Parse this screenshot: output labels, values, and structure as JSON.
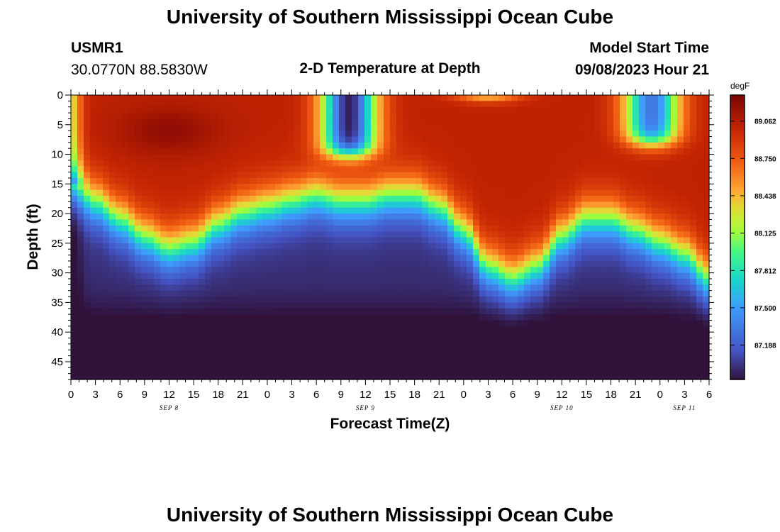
{
  "header": {
    "title": "University of Southern Mississippi Ocean Cube",
    "station_id": "USMR1",
    "station_coords": "30.0770N  88.5830W",
    "plot_title": "2-D Temperature at Depth",
    "model_label": "Model Start Time",
    "model_time": "09/08/2023 Hour 21"
  },
  "footer": {
    "title": "University of Southern Mississippi Ocean Cube"
  },
  "chart_data": {
    "type": "heatmap",
    "title": "2-D Temperature at Depth",
    "xlabel": "Forecast Time(Z)",
    "ylabel": "Depth (ft)",
    "x_range_hours": [
      0,
      78
    ],
    "x_tick_step_hours": 3,
    "x_tick_labels": [
      "0",
      "3",
      "6",
      "9",
      "12",
      "15",
      "18",
      "21",
      "0",
      "3",
      "6",
      "9",
      "12",
      "15",
      "18",
      "21",
      "0",
      "3",
      "6",
      "9",
      "12",
      "15",
      "18",
      "21",
      "0",
      "3",
      "6"
    ],
    "date_labels": [
      {
        "label": "SEP 8",
        "hour": 12
      },
      {
        "label": "SEP 9",
        "hour": 36
      },
      {
        "label": "SEP 10",
        "hour": 60
      },
      {
        "label": "SEP 11",
        "hour": 75
      }
    ],
    "y_range_ft": [
      0,
      48
    ],
    "y_tick_labels": [
      "0",
      "5",
      "10",
      "15",
      "20",
      "25",
      "30",
      "35",
      "40",
      "45"
    ],
    "y_tick_values": [
      0,
      5,
      10,
      15,
      20,
      25,
      30,
      35,
      40,
      45
    ],
    "colorbar": {
      "unit": "degF",
      "min": 86.9,
      "max": 89.28,
      "tick_labels": [
        "89.062",
        "88.750",
        "88.438",
        "88.125",
        "87.812",
        "87.500",
        "87.188"
      ],
      "tick_values": [
        89.062,
        88.75,
        88.438,
        88.125,
        87.812,
        87.5,
        87.188
      ]
    },
    "thermocline_depth_ft": [
      {
        "hour": 0,
        "depth": 15
      },
      {
        "hour": 3,
        "depth": 18
      },
      {
        "hour": 6,
        "depth": 21
      },
      {
        "hour": 9,
        "depth": 24
      },
      {
        "hour": 12,
        "depth": 26
      },
      {
        "hour": 15,
        "depth": 25
      },
      {
        "hour": 18,
        "depth": 22
      },
      {
        "hour": 21,
        "depth": 20
      },
      {
        "hour": 24,
        "depth": 19
      },
      {
        "hour": 27,
        "depth": 18
      },
      {
        "hour": 30,
        "depth": 17
      },
      {
        "hour": 33,
        "depth": 18
      },
      {
        "hour": 36,
        "depth": 18
      },
      {
        "hour": 39,
        "depth": 17
      },
      {
        "hour": 42,
        "depth": 17
      },
      {
        "hour": 45,
        "depth": 19
      },
      {
        "hour": 48,
        "depth": 23
      },
      {
        "hour": 51,
        "depth": 29
      },
      {
        "hour": 54,
        "depth": 31
      },
      {
        "hour": 57,
        "depth": 29
      },
      {
        "hour": 60,
        "depth": 24
      },
      {
        "hour": 63,
        "depth": 21
      },
      {
        "hour": 66,
        "depth": 21
      },
      {
        "hour": 69,
        "depth": 23
      },
      {
        "hour": 72,
        "depth": 25
      },
      {
        "hour": 75,
        "depth": 27
      },
      {
        "hour": 78,
        "depth": 31
      }
    ],
    "cool_surface_pools": [
      {
        "center_hour": 34,
        "width_hours": 3.3,
        "depth_ft": 10,
        "min_degF": 86.95
      },
      {
        "center_hour": 71,
        "width_hours": 3.3,
        "depth_ft": 8,
        "min_degF": 87.3
      }
    ],
    "warm_core": {
      "hour": 12,
      "depth_ft": 6,
      "max_degF": 89.2
    },
    "bottom_degF": 87.0
  }
}
